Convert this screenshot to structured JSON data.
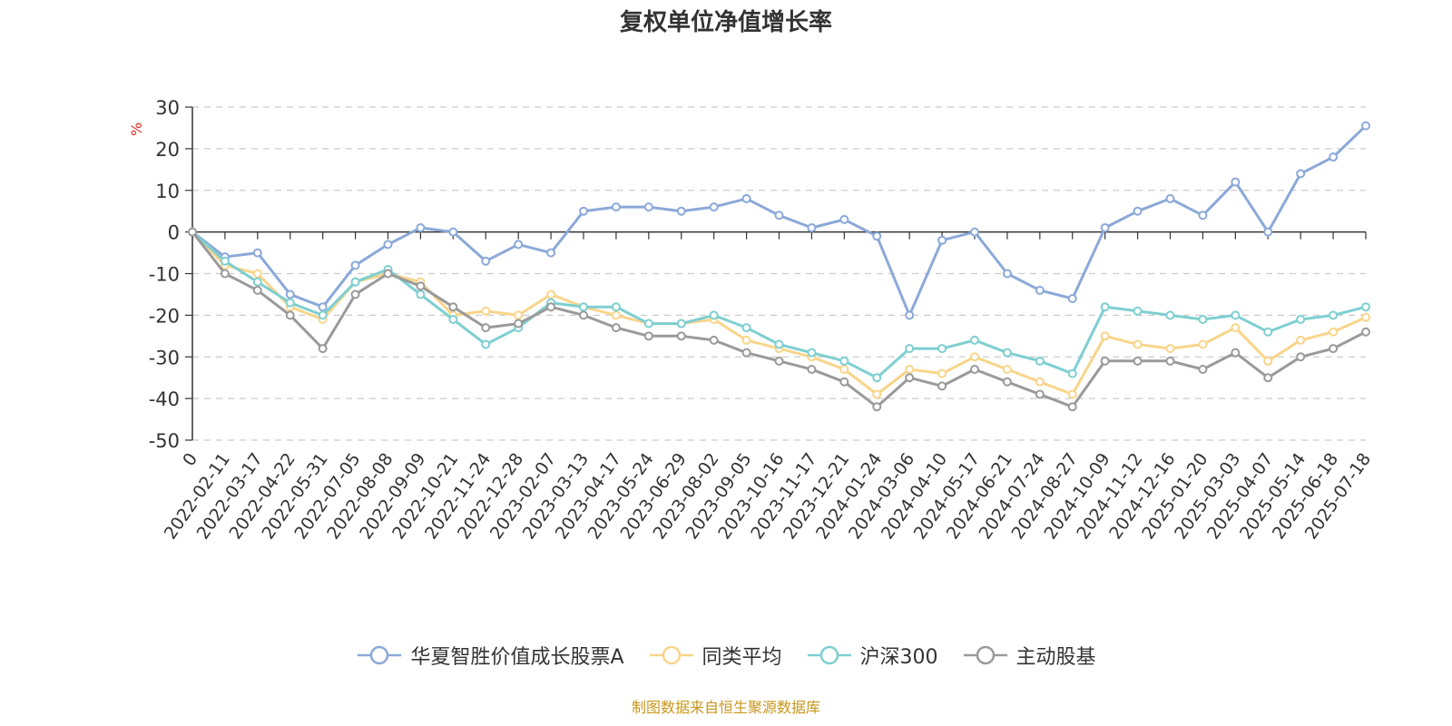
{
  "chart_data": {
    "type": "line",
    "title": "复权单位净值增长率",
    "yunit": "%",
    "ylim": [
      -50,
      30
    ],
    "yticks": [
      30,
      20,
      10,
      0,
      -10,
      -20,
      -30,
      -40,
      -50
    ],
    "xticks": [
      "0",
      "2022-02-11",
      "2022-03-17",
      "2022-04-22",
      "2022-05-31",
      "2022-07-05",
      "2022-08-08",
      "2022-09-09",
      "2022-10-21",
      "2022-11-24",
      "2022-12-28",
      "2023-02-07",
      "2023-03-13",
      "2023-04-17",
      "2023-05-24",
      "2023-06-29",
      "2023-08-02",
      "2023-09-05",
      "2023-10-16",
      "2023-11-17",
      "2023-12-21",
      "2024-01-24",
      "2024-03-06",
      "2024-04-10",
      "2024-05-17",
      "2024-06-21",
      "2024-07-24",
      "2024-08-27",
      "2024-10-09",
      "2024-11-12",
      "2024-12-16",
      "2025-01-20",
      "2025-03-03",
      "2025-04-07",
      "2025-05-14",
      "2025-06-18",
      "2025-07-18"
    ],
    "grid": true,
    "legend_position": "bottom",
    "series": [
      {
        "name": "华夏智胜价值成长股票A",
        "color": "#8ba9d8",
        "values": [
          0,
          -6,
          -5,
          -15,
          -18,
          -8,
          -3,
          1,
          0,
          -7,
          -3,
          -5,
          5,
          6,
          6,
          5,
          6,
          8,
          4,
          1,
          3,
          -1,
          -20,
          -2,
          0,
          -10,
          -14,
          -16,
          1,
          5,
          8,
          4,
          12,
          0,
          14,
          18,
          25.5
        ]
      },
      {
        "name": "同类平均",
        "color": "#f8d58a",
        "values": [
          0,
          -8,
          -10,
          -18,
          -21,
          -12,
          -10,
          -12,
          -20,
          -19,
          -20,
          -15,
          -18,
          -20,
          -22,
          -22,
          -21,
          -26,
          -28,
          -30,
          -33,
          -39,
          -33,
          -34,
          -30,
          -33,
          -36,
          -39,
          -25,
          -27,
          -28,
          -27,
          -23,
          -31,
          -26,
          -24,
          -20.5
        ]
      },
      {
        "name": "沪深300",
        "color": "#7ecfd1",
        "values": [
          0,
          -7,
          -12,
          -17,
          -20,
          -12,
          -9,
          -15,
          -21,
          -27,
          -23,
          -17,
          -18,
          -18,
          -22,
          -22,
          -20,
          -23,
          -27,
          -29,
          -31,
          -35,
          -28,
          -28,
          -26,
          -29,
          -31,
          -34,
          -18,
          -19,
          -20,
          -21,
          -20,
          -24,
          -21,
          -20,
          -18
        ]
      },
      {
        "name": "主动股基",
        "color": "#9a9a9a",
        "values": [
          0,
          -10,
          -14,
          -20,
          -28,
          -15,
          -10,
          -13,
          -18,
          -23,
          -22,
          -18,
          -20,
          -23,
          -25,
          -25,
          -26,
          -29,
          -31,
          -33,
          -36,
          -42,
          -35,
          -37,
          -33,
          -36,
          -39,
          -42,
          -31,
          -31,
          -31,
          -33,
          -29,
          -35,
          -30,
          -28,
          -24
        ]
      }
    ]
  },
  "footer": "制图数据来自恒生聚源数据库"
}
